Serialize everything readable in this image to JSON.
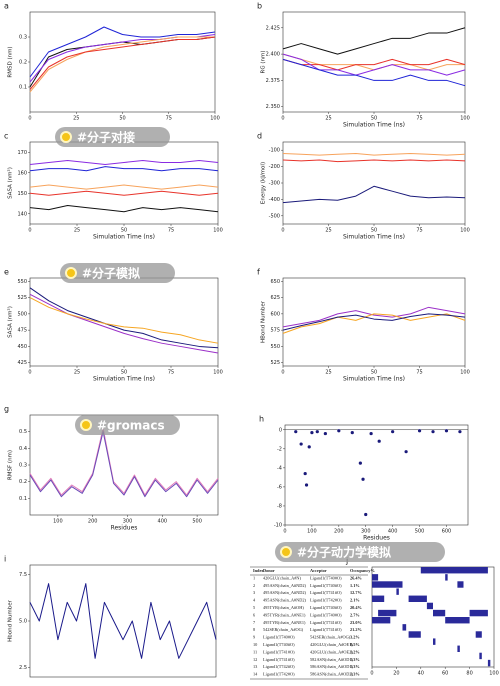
{
  "chart_data": [
    {
      "panel": "a",
      "type": "line",
      "ylabel": "RMSD (nm)",
      "x": [
        0,
        10,
        20,
        30,
        40,
        50,
        60,
        70,
        80,
        90,
        100
      ],
      "xlim": [
        0,
        100
      ],
      "xticks": [
        0,
        25,
        50,
        75,
        100
      ],
      "ylim": [
        0,
        0.4
      ],
      "yticks": [
        0.1,
        0.2,
        0.3
      ],
      "series": [
        {
          "name": "blue",
          "color": "#1f24d6",
          "values": [
            0.14,
            0.24,
            0.27,
            0.3,
            0.34,
            0.31,
            0.3,
            0.3,
            0.31,
            0.31,
            0.32
          ]
        },
        {
          "name": "black",
          "color": "#111111",
          "values": [
            0.1,
            0.22,
            0.25,
            0.26,
            0.27,
            0.28,
            0.27,
            0.28,
            0.29,
            0.29,
            0.3
          ]
        },
        {
          "name": "purple",
          "color": "#8a2be2",
          "values": [
            0.12,
            0.21,
            0.24,
            0.26,
            0.27,
            0.28,
            0.29,
            0.29,
            0.3,
            0.3,
            0.31
          ]
        },
        {
          "name": "orange",
          "color": "#f7a35c",
          "values": [
            0.08,
            0.17,
            0.21,
            0.24,
            0.26,
            0.27,
            0.28,
            0.29,
            0.3,
            0.3,
            0.3
          ]
        },
        {
          "name": "red",
          "color": "#e8332a",
          "values": [
            0.09,
            0.18,
            0.22,
            0.24,
            0.25,
            0.26,
            0.27,
            0.28,
            0.29,
            0.29,
            0.3
          ]
        }
      ]
    },
    {
      "panel": "b",
      "type": "line",
      "ylabel": "RG (nm)",
      "xlabel": "Simulation Time (ns)",
      "x": [
        0,
        10,
        20,
        30,
        40,
        50,
        60,
        70,
        80,
        90,
        100
      ],
      "xlim": [
        0,
        100
      ],
      "xticks": [
        0,
        25,
        50,
        75,
        100
      ],
      "ylim": [
        2.345,
        2.44
      ],
      "yticks": [
        {
          "value": 2.35,
          "label": "2.350"
        },
        2.375,
        {
          "value": 2.4,
          "label": "2.400"
        },
        2.425
      ],
      "series": [
        {
          "name": "black",
          "color": "#111111",
          "values": [
            2.405,
            2.41,
            2.405,
            2.4,
            2.405,
            2.41,
            2.415,
            2.415,
            2.42,
            2.42,
            2.425
          ]
        },
        {
          "name": "orange",
          "color": "#f7a35c",
          "values": [
            2.4,
            2.395,
            2.39,
            2.39,
            2.39,
            2.385,
            2.39,
            2.39,
            2.385,
            2.39,
            2.39
          ]
        },
        {
          "name": "red",
          "color": "#e8332a",
          "values": [
            2.395,
            2.39,
            2.39,
            2.385,
            2.39,
            2.39,
            2.395,
            2.39,
            2.39,
            2.395,
            2.39
          ]
        },
        {
          "name": "purple",
          "color": "#8a2be2",
          "values": [
            2.4,
            2.395,
            2.385,
            2.385,
            2.38,
            2.385,
            2.39,
            2.385,
            2.385,
            2.38,
            2.385
          ]
        },
        {
          "name": "blue",
          "color": "#1f24d6",
          "values": [
            2.395,
            2.39,
            2.385,
            2.38,
            2.38,
            2.375,
            2.375,
            2.38,
            2.375,
            2.375,
            2.37
          ]
        }
      ]
    },
    {
      "panel": "c",
      "type": "line",
      "ylabel": "SASA (nm²)",
      "xlabel": "Simulation Time (ns)",
      "x": [
        0,
        10,
        20,
        30,
        40,
        50,
        60,
        70,
        80,
        90,
        100
      ],
      "xlim": [
        0,
        100
      ],
      "xticks": [
        0,
        25,
        50,
        75,
        100
      ],
      "ylim": [
        135,
        175
      ],
      "yticks": [
        140,
        150,
        160,
        170
      ],
      "series": [
        {
          "name": "purple",
          "color": "#8a2be2",
          "values": [
            164,
            165,
            166,
            165,
            164,
            165,
            166,
            165,
            165,
            166,
            165
          ]
        },
        {
          "name": "blue",
          "color": "#1f24d6",
          "values": [
            161,
            162,
            162,
            161,
            163,
            162,
            162,
            161,
            162,
            162,
            161
          ]
        },
        {
          "name": "orange",
          "color": "#f7a35c",
          "values": [
            153,
            154,
            153,
            152,
            153,
            154,
            153,
            152,
            153,
            154,
            153
          ]
        },
        {
          "name": "red",
          "color": "#e8332a",
          "values": [
            150,
            149,
            150,
            151,
            150,
            149,
            150,
            151,
            150,
            149,
            150
          ]
        },
        {
          "name": "black",
          "color": "#111111",
          "values": [
            143,
            142,
            144,
            143,
            142,
            141,
            143,
            142,
            143,
            142,
            141
          ]
        }
      ]
    },
    {
      "panel": "d",
      "type": "line",
      "ylabel": "Energy (kJ/mol)",
      "xlabel": "Simulation Time (ns)",
      "x": [
        0,
        10,
        20,
        30,
        40,
        50,
        60,
        70,
        80,
        90,
        100
      ],
      "xlim": [
        0,
        100
      ],
      "xticks": [
        0,
        25,
        50,
        75,
        100
      ],
      "ylim": [
        -550,
        -50
      ],
      "yticks": [
        -100,
        -200,
        -300,
        -400,
        -500
      ],
      "series": [
        {
          "name": "orange",
          "color": "#f7a35c",
          "values": [
            -120,
            -125,
            -130,
            -125,
            -120,
            -130,
            -125,
            -120,
            -125,
            -130,
            -125
          ]
        },
        {
          "name": "red",
          "color": "#e8332a",
          "values": [
            -160,
            -165,
            -160,
            -170,
            -165,
            -160,
            -165,
            -160,
            -165,
            -160,
            -165
          ]
        },
        {
          "name": "navy",
          "color": "#1a1a7a",
          "values": [
            -420,
            -410,
            -400,
            -405,
            -380,
            -320,
            -350,
            -380,
            -390,
            -385,
            -390
          ]
        }
      ]
    },
    {
      "panel": "e",
      "type": "line",
      "ylabel": "SASA (nm²)",
      "xlabel": "Simulation Time (ns)",
      "x": [
        0,
        10,
        20,
        30,
        40,
        50,
        60,
        70,
        80,
        90,
        100
      ],
      "xlim": [
        0,
        100
      ],
      "xticks": [
        0,
        25,
        50,
        75,
        100
      ],
      "ylim": [
        420,
        555
      ],
      "yticks": [
        425,
        450,
        475,
        500,
        525,
        550
      ],
      "series": [
        {
          "name": "navy",
          "color": "#1a1a7a",
          "values": [
            540,
            520,
            505,
            495,
            485,
            475,
            470,
            460,
            455,
            450,
            448
          ]
        },
        {
          "name": "purple",
          "color": "#9b30c8",
          "values": [
            530,
            515,
            500,
            490,
            480,
            470,
            462,
            455,
            450,
            445,
            440
          ]
        },
        {
          "name": "orange",
          "color": "#f6a623",
          "values": [
            525,
            510,
            500,
            492,
            485,
            480,
            478,
            472,
            468,
            460,
            455
          ]
        }
      ]
    },
    {
      "panel": "f",
      "type": "line",
      "ylabel": "HBond Number",
      "xlabel": "Simulation Time (ns)",
      "x": [
        0,
        10,
        20,
        30,
        40,
        50,
        60,
        70,
        80,
        90,
        100
      ],
      "xlim": [
        0,
        100
      ],
      "xticks": [
        0,
        25,
        50,
        75,
        100
      ],
      "ylim": [
        520,
        655
      ],
      "yticks": [
        525,
        550,
        575,
        600,
        625,
        650
      ],
      "series": [
        {
          "name": "purple",
          "color": "#9b30c8",
          "values": [
            580,
            585,
            590,
            600,
            605,
            598,
            595,
            600,
            610,
            605,
            600
          ]
        },
        {
          "name": "orange",
          "color": "#f6a623",
          "values": [
            570,
            580,
            585,
            595,
            590,
            600,
            598,
            590,
            595,
            600,
            590
          ]
        },
        {
          "name": "navy",
          "color": "#1a1a7a",
          "values": [
            575,
            582,
            588,
            595,
            598,
            592,
            590,
            596,
            600,
            598,
            595
          ]
        }
      ]
    },
    {
      "panel": "g",
      "type": "line",
      "ylabel": "RMSF (nm)",
      "xlabel": "Residues",
      "x": [
        20,
        50,
        80,
        110,
        140,
        170,
        200,
        230,
        260,
        290,
        320,
        350,
        380,
        410,
        440,
        470,
        500,
        530,
        560
      ],
      "xlim": [
        20,
        560
      ],
      "xticks": [
        100,
        200,
        300,
        400,
        500
      ],
      "ylim": [
        0,
        0.6
      ],
      "yticks": [
        0.1,
        0.2,
        0.3,
        0.4,
        0.5
      ],
      "series": [
        {
          "name": "pink",
          "color": "#e07ab8",
          "values": [
            0.25,
            0.15,
            0.22,
            0.12,
            0.18,
            0.14,
            0.25,
            0.52,
            0.2,
            0.13,
            0.24,
            0.12,
            0.22,
            0.15,
            0.2,
            0.12,
            0.22,
            0.14,
            0.22
          ]
        },
        {
          "name": "purple",
          "color": "#6a4ab8",
          "values": [
            0.24,
            0.14,
            0.21,
            0.11,
            0.17,
            0.13,
            0.24,
            0.5,
            0.19,
            0.12,
            0.23,
            0.11,
            0.21,
            0.14,
            0.19,
            0.11,
            0.21,
            0.13,
            0.21
          ]
        }
      ]
    },
    {
      "panel": "h",
      "type": "scatter",
      "xlabel": "Residues",
      "color": "#1a1a7a",
      "x": [
        40,
        60,
        75,
        80,
        90,
        100,
        120,
        150,
        200,
        250,
        280,
        290,
        300,
        320,
        350,
        400,
        450,
        500,
        550,
        600,
        650
      ],
      "values": [
        -0.2,
        -1.5,
        -4.6,
        -5.8,
        -1.8,
        -0.3,
        -0.2,
        -0.4,
        -0.1,
        -0.3,
        -3.5,
        -5.2,
        -8.9,
        -0.4,
        -1.2,
        -0.2,
        -2.3,
        -0.1,
        -0.2,
        -0.1,
        -0.2
      ],
      "xlim": [
        0,
        680
      ],
      "xticks": [
        0,
        100,
        200,
        300,
        400,
        500,
        600
      ],
      "ylim": [
        -10,
        0.5
      ],
      "yticks": [
        0,
        -2,
        -4,
        -6,
        -8,
        -10
      ]
    },
    {
      "panel": "i",
      "type": "line",
      "ylabel": "Hbond Number",
      "x": [
        0,
        5,
        10,
        15,
        20,
        25,
        30,
        35,
        40,
        45,
        50,
        55,
        60,
        65,
        70,
        75,
        80,
        85,
        90,
        95,
        100
      ],
      "xlim": [
        0,
        100
      ],
      "ylim": [
        2,
        8
      ],
      "yticks": [
        2.5,
        {
          "value": 5,
          "label": "5.0"
        },
        7.5
      ],
      "series": [
        {
          "name": "navy",
          "color": "#1a1a8a",
          "values": [
            6,
            5,
            7,
            4,
            6,
            5,
            7,
            3,
            6,
            5,
            4,
            5,
            3,
            6,
            4,
            5,
            3,
            4,
            5,
            6,
            4
          ]
        }
      ]
    },
    {
      "panel": "j",
      "type": "timeline",
      "color": "#2a2a9a",
      "xlim": [
        0,
        100
      ],
      "xticks": [
        0,
        20,
        40,
        60,
        80,
        100
      ],
      "segments": [
        [
          [
            40,
            95
          ]
        ],
        [
          [
            0,
            5
          ],
          [
            60,
            62
          ]
        ],
        [
          [
            0,
            25
          ],
          [
            70,
            75
          ]
        ],
        [
          [
            20,
            22
          ]
        ],
        [
          [
            0,
            10
          ],
          [
            30,
            45
          ]
        ],
        [
          [
            45,
            50
          ]
        ],
        [
          [
            5,
            20
          ],
          [
            50,
            60
          ],
          [
            80,
            95
          ]
        ],
        [
          [
            0,
            15
          ],
          [
            60,
            80
          ]
        ],
        [
          [
            25,
            28
          ]
        ],
        [
          [
            30,
            40
          ],
          [
            85,
            90
          ]
        ],
        [
          [
            50,
            52
          ]
        ],
        [
          [
            70,
            72
          ]
        ],
        [
          [
            88,
            90
          ]
        ],
        [
          [
            95,
            97
          ]
        ]
      ]
    }
  ],
  "table": {
    "header": [
      "Index",
      "Donor",
      "Acceptor",
      "Occupancy%"
    ],
    "rows": [
      [
        "1",
        "420GLU(chain_A#N)",
        "Ligand1(T740#O)",
        "26.4%"
      ],
      [
        "2",
        "495ASN(chain_A#ND2)",
        "Ligand1(T740#O)",
        "1.1%"
      ],
      [
        "3",
        "495ASN(chain_A#ND2)",
        "Ligand1(T741#O)",
        "12.7%"
      ],
      [
        "4",
        "495ASN(chain_A#ND2)",
        "Ligand1(T742#O)",
        "2.1%"
      ],
      [
        "5",
        "495TYR(chain_A#OH)",
        "Ligand1(T740#O)",
        "20.4%"
      ],
      [
        "6",
        "495TYR(chain_A#NE1)",
        "Ligand1(T740#O)",
        "2.7%"
      ],
      [
        "7",
        "495TYR(chain_A#NE1)",
        "Ligand1(T741#O)",
        "23.0%"
      ],
      [
        "8",
        "542SER(chain_A#OG)",
        "Ligand1(T741#O)",
        "21.2%"
      ],
      [
        "9",
        "Ligand1(T740#O)",
        "542SER(chain_A#OG)",
        "3.2%"
      ],
      [
        "10",
        "Ligand1(T740#O)",
        "420GLU(chain_A#OE1)",
        "8.5%"
      ],
      [
        "11",
        "Ligand1(T741#O)",
        "420GLU(chain_A#OE2)",
        "1.2%"
      ],
      [
        "12",
        "Ligand1(T741#O)",
        "582ASN(chain_A#OD1)",
        "1.3%"
      ],
      [
        "13",
        "Ligand1(T742#O)",
        "586ASN(chain_A#OD1)",
        "1.3%"
      ],
      [
        "14",
        "Ligand1(T742#O)",
        "586ASN(chain_A#OD2)",
        "1.3%"
      ]
    ]
  },
  "watermarks": [
    "#分子对接",
    "#分子模拟",
    "#gromacs",
    "#分子动力学模拟"
  ]
}
